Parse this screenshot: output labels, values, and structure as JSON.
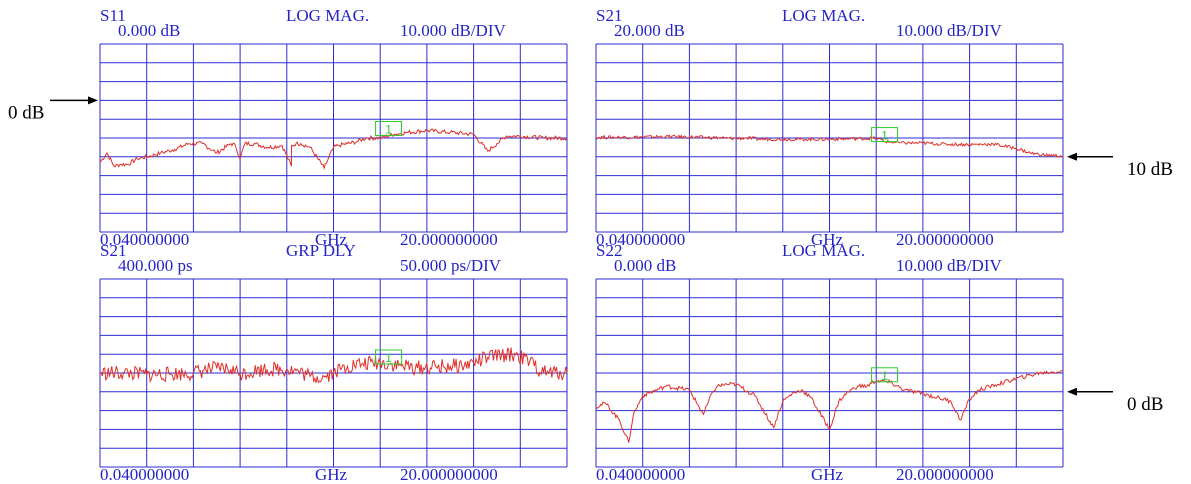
{
  "colors": {
    "grid": "#2b2bd6",
    "trace": "#e0302a",
    "marker": "#2ecc2e",
    "text": "#2323c8",
    "annotation": "#000000"
  },
  "chart_data": [
    {
      "type": "line",
      "param": "S11",
      "format": "LOG MAG.",
      "ref": "0.000 dB",
      "scale": "10.000 dB/DIV",
      "x_start": "0.040000000",
      "x_unit": "GHz",
      "x_center": "20.000000000",
      "y_divisions": 10,
      "ylim": [
        -50,
        50
      ],
      "x_divisions": 10,
      "marker_label": "1",
      "marker_x": 6.2,
      "reference_arrow_label": "0 dB",
      "reference_arrow_side": "left",
      "reference_level_div": 7,
      "series": [
        {
          "x": [
            0,
            0.15,
            0.3,
            0.45,
            0.6,
            0.8,
            1.0,
            1.3,
            1.6,
            1.9,
            2.2,
            2.5,
            2.8,
            2.9,
            3.0,
            3.1,
            3.3,
            3.6,
            3.9,
            4.1,
            4.1,
            4.2,
            4.3,
            4.5,
            4.8,
            5.0,
            5.1,
            5.3,
            5.5,
            5.7,
            6.0,
            6.3,
            6.6,
            7.0,
            7.5,
            8.0,
            8.3,
            8.5,
            8.7,
            9.0,
            9.5,
            10.0
          ],
          "y": [
            -13,
            -8,
            -15,
            -14,
            -14,
            -11,
            -10,
            -8,
            -6,
            -3,
            -3,
            -8,
            -3,
            -4,
            -11,
            -3,
            -3,
            -5,
            -4,
            -15,
            -4,
            -3,
            -3,
            -5,
            -16,
            -5,
            -4,
            -3,
            -2,
            0,
            0,
            2,
            3,
            4,
            3,
            2,
            -7,
            -3,
            1,
            1,
            0,
            0
          ]
        }
      ]
    },
    {
      "type": "line",
      "param": "S21",
      "format": "LOG MAG.",
      "ref": "20.000 dB",
      "scale": "10.000 dB/DIV",
      "x_start": "0.040000000",
      "x_unit": "GHz",
      "x_center": "20.000000000",
      "y_divisions": 10,
      "ylim": [
        -30,
        70
      ],
      "x_divisions": 10,
      "marker_label": "1",
      "marker_x": 6.2,
      "reference_arrow_label": "10 dB",
      "reference_arrow_side": "right",
      "reference_level_div": 4,
      "series": [
        {
          "x": [
            0,
            0.5,
            1.0,
            1.5,
            2.0,
            2.5,
            3.0,
            3.2,
            3.5,
            4.0,
            4.5,
            5.0,
            5.5,
            6.0,
            6.2,
            6.5,
            7.0,
            7.5,
            8.0,
            8.5,
            9.0,
            9.3,
            9.6,
            10.0
          ],
          "y": [
            20.4,
            20.4,
            20.5,
            20.8,
            20.5,
            20.2,
            19.7,
            20.0,
            19.4,
            19.4,
            19.3,
            19.4,
            19.6,
            19.9,
            18.1,
            17.4,
            17.3,
            16.7,
            16.5,
            16.8,
            14.5,
            12.0,
            10.9,
            10.4
          ]
        }
      ]
    },
    {
      "type": "line",
      "param": "S21",
      "format": "GRP DLY",
      "ref": "400.000 ps",
      "scale": "50.000 ps/DIV",
      "x_start": "0.040000000",
      "x_unit": "GHz",
      "x_center": "20.000000000",
      "y_divisions": 10,
      "ylim": [
        150,
        650
      ],
      "x_divisions": 10,
      "marker_label": "1",
      "marker_x": 6.2,
      "reference_arrow_label": "",
      "reference_arrow_side": "",
      "reference_level_div": 0,
      "series": [
        {
          "x": [
            0,
            0.5,
            1.0,
            1.5,
            2.0,
            2.2,
            2.5,
            2.8,
            3.0,
            3.5,
            4.0,
            4.2,
            4.5,
            4.8,
            5.0,
            5.3,
            5.6,
            6.0,
            6.4,
            6.8,
            7.2,
            7.5,
            7.8,
            8.0,
            8.3,
            8.6,
            8.9,
            9.2,
            9.5,
            10.0
          ],
          "y": [
            400,
            400,
            396,
            397,
            400,
            407,
            412,
            410,
            398,
            410,
            410,
            406,
            391,
            390,
            402,
            418,
            424,
            428,
            420,
            413,
            416,
            418,
            420,
            428,
            441,
            448,
            449,
            429,
            401,
            400
          ]
        }
      ]
    },
    {
      "type": "line",
      "param": "S22",
      "format": "LOG MAG.",
      "ref": "0.000 dB",
      "scale": "10.000 dB/DIV",
      "x_start": "0.040000000",
      "x_unit": "GHz",
      "x_center": "20.000000000",
      "y_divisions": 10,
      "ylim": [
        -50,
        50
      ],
      "x_divisions": 10,
      "marker_label": "1",
      "marker_x": 6.2,
      "reference_arrow_label": "0 dB",
      "reference_arrow_side": "right",
      "reference_level_div": 4,
      "series": [
        {
          "x": [
            0,
            0.2,
            0.5,
            0.7,
            0.8,
            1.0,
            1.5,
            2.0,
            2.3,
            2.5,
            2.6,
            2.8,
            3.0,
            3.4,
            3.8,
            4.0,
            4.2,
            4.4,
            4.6,
            5.0,
            5.2,
            5.4,
            5.6,
            5.8,
            6.0,
            6.3,
            6.6,
            7.0,
            7.3,
            7.6,
            7.8,
            8.0,
            8.2,
            8.6,
            9.0,
            9.5,
            10.0
          ],
          "y": [
            -18,
            -16,
            -25,
            -37,
            -22,
            -12,
            -7,
            -9,
            -22,
            -10,
            -7,
            -6,
            -6,
            -12,
            -29,
            -15,
            -11,
            -9,
            -13,
            -30,
            -15,
            -10,
            -7,
            -7,
            -4,
            -5,
            -9,
            -11,
            -13,
            -15,
            -25,
            -14,
            -9,
            -6,
            -3,
            0,
            1
          ]
        }
      ]
    }
  ]
}
